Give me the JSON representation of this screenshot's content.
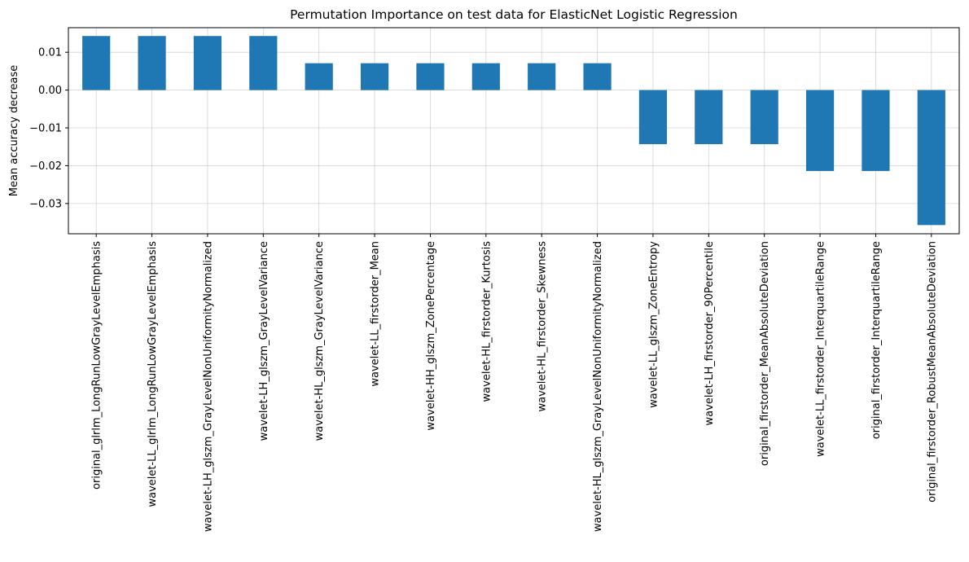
{
  "chart_data": {
    "type": "bar",
    "title": "Permutation Importance on test data for ElasticNet Logistic Regression",
    "xlabel": "",
    "ylabel": "Mean accuracy decrease",
    "categories": [
      "original_glrlm_LongRunLowGrayLevelEmphasis",
      "wavelet-LL_glrlm_LongRunLowGrayLevelEmphasis",
      "wavelet-LH_glszm_GrayLevelNonUniformityNormalized",
      "wavelet-LH_glszm_GrayLevelVariance",
      "wavelet-HL_glszm_GrayLevelVariance",
      "wavelet-LL_firstorder_Mean",
      "wavelet-HH_glszm_ZonePercentage",
      "wavelet-HL_firstorder_Kurtosis",
      "wavelet-HL_firstorder_Skewness",
      "wavelet-HL_glszm_GrayLevelNonUniformityNormalized",
      "wavelet-LL_glszm_ZoneEntropy",
      "wavelet-LH_firstorder_90Percentile",
      "original_firstorder_MeanAbsoluteDeviation",
      "wavelet-LL_firstorder_InterquartileRange",
      "original_firstorder_InterquartileRange",
      "original_firstorder_RobustMeanAbsoluteDeviation"
    ],
    "values": [
      0.0143,
      0.0143,
      0.0143,
      0.0143,
      0.0071,
      0.0071,
      0.0071,
      0.0071,
      0.0071,
      0.0071,
      -0.0143,
      -0.0143,
      -0.0143,
      -0.0214,
      -0.0214,
      -0.0357
    ],
    "ylim": [
      -0.038,
      0.0165
    ],
    "yticks": [
      0.01,
      0.0,
      -0.01,
      -0.02,
      -0.03
    ],
    "ytick_labels": [
      "0.01",
      "0.00",
      "−0.01",
      "−0.02",
      "−0.03"
    ],
    "grid": true,
    "bar_color": "#1f77b4"
  }
}
